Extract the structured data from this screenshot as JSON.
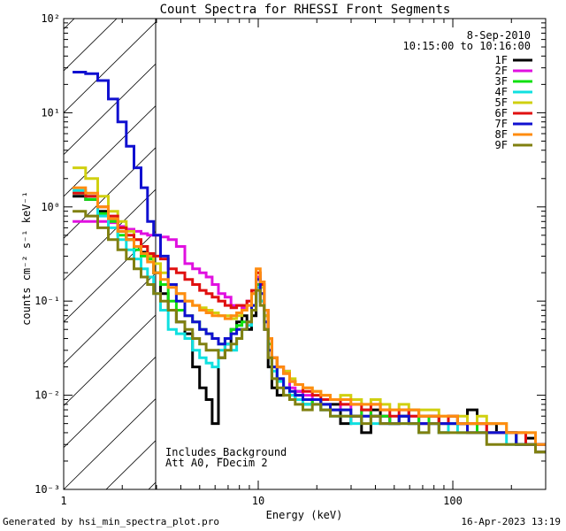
{
  "chart_data": {
    "type": "line",
    "title": "Count Spectra for RHESSI Front Segments",
    "xlabel": "Energy (keV)",
    "ylabel": "counts cm⁻² s⁻¹ keV⁻¹",
    "xscale": "log",
    "yscale": "log",
    "xlim": [
      1,
      300
    ],
    "ylim": [
      0.001,
      100
    ],
    "x_tick_labels": [
      {
        "value": 1,
        "label": "1"
      },
      {
        "value": 10,
        "label": "10"
      },
      {
        "value": 100,
        "label": "100"
      }
    ],
    "y_tick_labels": [
      {
        "value": 0.001,
        "label": "10⁻³"
      },
      {
        "value": 0.01,
        "label": "10⁻²"
      },
      {
        "value": 0.1,
        "label": "10⁻¹"
      },
      {
        "value": 1,
        "label": "10⁰"
      },
      {
        "value": 10,
        "label": "10¹"
      },
      {
        "value": 100,
        "label": "10²"
      }
    ],
    "hatched_region": {
      "x": [
        1,
        3
      ]
    },
    "date_label": "8-Sep-2010",
    "time_range_label": "10:15:00 to 10:16:00",
    "annotations": [
      "Includes_Background",
      "Att A0, FDecim 2"
    ],
    "legend_position": "top-right",
    "x": [
      1.2,
      1.4,
      1.6,
      1.8,
      2.0,
      2.2,
      2.4,
      2.6,
      2.8,
      3.0,
      3.3,
      3.6,
      4.0,
      4.4,
      4.8,
      5.2,
      5.6,
      6.0,
      6.5,
      7.0,
      7.5,
      8.0,
      8.5,
      9.0,
      9.5,
      10.0,
      10.5,
      11.0,
      11.5,
      12.0,
      13.0,
      14.0,
      15.0,
      16.0,
      18.0,
      20.0,
      22.0,
      25.0,
      28.0,
      32.0,
      36.0,
      40.0,
      45.0,
      50.0,
      56.0,
      63.0,
      71.0,
      80.0,
      90.0,
      100.0,
      112.0,
      126.0,
      141.0,
      158.0,
      178.0,
      200.0,
      224.0,
      251.0,
      282.0
    ],
    "series": [
      {
        "name": "1F",
        "color": "#000000",
        "values": [
          1.3,
          1.2,
          0.9,
          0.7,
          0.55,
          0.45,
          0.38,
          0.33,
          0.3,
          0.2,
          0.12,
          0.08,
          0.06,
          0.045,
          0.02,
          0.012,
          0.009,
          0.005,
          0.025,
          0.035,
          0.05,
          0.06,
          0.07,
          0.05,
          0.07,
          0.15,
          0.1,
          0.05,
          0.02,
          0.012,
          0.01,
          0.012,
          0.009,
          0.011,
          0.008,
          0.009,
          0.007,
          0.008,
          0.005,
          0.006,
          0.004,
          0.007,
          0.006,
          0.005,
          0.006,
          0.007,
          0.005,
          0.006,
          0.004,
          0.006,
          0.005,
          0.007,
          0.005,
          0.005,
          0.004,
          0.004,
          0.003,
          0.0035,
          0.0025
        ]
      },
      {
        "name": "2F",
        "color": "#e010e0",
        "values": [
          0.7,
          0.7,
          0.7,
          0.68,
          0.62,
          0.58,
          0.55,
          0.52,
          0.5,
          0.5,
          0.48,
          0.45,
          0.38,
          0.25,
          0.22,
          0.2,
          0.18,
          0.15,
          0.12,
          0.11,
          0.09,
          0.09,
          0.085,
          0.1,
          0.12,
          0.18,
          0.15,
          0.08,
          0.04,
          0.025,
          0.02,
          0.018,
          0.012,
          0.011,
          0.01,
          0.009,
          0.008,
          0.007,
          0.008,
          0.006,
          0.007,
          0.006,
          0.006,
          0.005,
          0.006,
          0.006,
          0.005,
          0.005,
          0.005,
          0.005,
          0.005,
          0.004,
          0.005,
          0.004,
          0.004,
          0.004,
          0.003,
          0.003,
          0.003
        ]
      },
      {
        "name": "3F",
        "color": "#10e010",
        "values": [
          1.4,
          1.2,
          0.85,
          0.7,
          0.5,
          0.45,
          0.35,
          0.3,
          0.28,
          0.2,
          0.15,
          0.1,
          0.08,
          0.07,
          0.06,
          0.05,
          0.045,
          0.04,
          0.035,
          0.04,
          0.05,
          0.055,
          0.06,
          0.06,
          0.09,
          0.15,
          0.12,
          0.07,
          0.035,
          0.02,
          0.015,
          0.012,
          0.01,
          0.01,
          0.008,
          0.009,
          0.008,
          0.007,
          0.007,
          0.006,
          0.007,
          0.006,
          0.006,
          0.005,
          0.006,
          0.005,
          0.006,
          0.005,
          0.005,
          0.005,
          0.005,
          0.005,
          0.004,
          0.004,
          0.004,
          0.004,
          0.003,
          0.003,
          0.003
        ]
      },
      {
        "name": "4F",
        "color": "#10e0e0",
        "values": [
          1.5,
          1.3,
          0.8,
          0.6,
          0.45,
          0.35,
          0.28,
          0.22,
          0.18,
          0.12,
          0.08,
          0.05,
          0.045,
          0.04,
          0.03,
          0.025,
          0.022,
          0.02,
          0.03,
          0.035,
          0.03,
          0.04,
          0.05,
          0.055,
          0.08,
          0.14,
          0.1,
          0.06,
          0.03,
          0.018,
          0.014,
          0.012,
          0.01,
          0.009,
          0.008,
          0.008,
          0.007,
          0.006,
          0.006,
          0.005,
          0.006,
          0.005,
          0.005,
          0.005,
          0.005,
          0.005,
          0.004,
          0.005,
          0.004,
          0.005,
          0.004,
          0.004,
          0.004,
          0.004,
          0.004,
          0.003,
          0.003,
          0.003,
          0.003
        ]
      },
      {
        "name": "5F",
        "color": "#d0d010",
        "values": [
          2.6,
          2.0,
          1.3,
          0.9,
          0.7,
          0.55,
          0.45,
          0.38,
          0.3,
          0.25,
          0.2,
          0.15,
          0.12,
          0.1,
          0.09,
          0.085,
          0.08,
          0.075,
          0.07,
          0.07,
          0.065,
          0.07,
          0.08,
          0.09,
          0.12,
          0.2,
          0.14,
          0.07,
          0.04,
          0.025,
          0.02,
          0.018,
          0.015,
          0.013,
          0.012,
          0.011,
          0.01,
          0.009,
          0.01,
          0.009,
          0.008,
          0.009,
          0.008,
          0.007,
          0.008,
          0.007,
          0.007,
          0.007,
          0.006,
          0.006,
          0.006,
          0.005,
          0.006,
          0.005,
          0.005,
          0.004,
          0.004,
          0.004,
          0.003
        ]
      },
      {
        "name": "6F",
        "color": "#e01010",
        "values": [
          1.4,
          1.3,
          1.0,
          0.8,
          0.6,
          0.5,
          0.45,
          0.38,
          0.32,
          0.3,
          0.28,
          0.22,
          0.2,
          0.17,
          0.15,
          0.13,
          0.12,
          0.11,
          0.1,
          0.09,
          0.085,
          0.09,
          0.09,
          0.1,
          0.13,
          0.2,
          0.15,
          0.08,
          0.04,
          0.025,
          0.02,
          0.017,
          0.014,
          0.013,
          0.011,
          0.01,
          0.009,
          0.009,
          0.008,
          0.008,
          0.007,
          0.008,
          0.007,
          0.006,
          0.007,
          0.006,
          0.006,
          0.006,
          0.005,
          0.006,
          0.005,
          0.005,
          0.005,
          0.004,
          0.004,
          0.004,
          0.004,
          0.003,
          0.003
        ]
      },
      {
        "name": "7F",
        "color": "#1010d0",
        "values": [
          27,
          26,
          22,
          14,
          8,
          4.4,
          2.6,
          1.6,
          0.7,
          0.5,
          0.3,
          0.15,
          0.1,
          0.07,
          0.06,
          0.05,
          0.045,
          0.04,
          0.035,
          0.04,
          0.045,
          0.05,
          0.05,
          0.06,
          0.09,
          0.17,
          0.12,
          0.06,
          0.03,
          0.02,
          0.015,
          0.012,
          0.011,
          0.01,
          0.009,
          0.009,
          0.008,
          0.007,
          0.007,
          0.006,
          0.006,
          0.006,
          0.005,
          0.005,
          0.006,
          0.005,
          0.005,
          0.005,
          0.005,
          0.005,
          0.005,
          0.004,
          0.004,
          0.004,
          0.004,
          0.004,
          0.003,
          0.003,
          0.003
        ]
      },
      {
        "name": "8F",
        "color": "#ff8c10",
        "values": [
          1.6,
          1.4,
          1.0,
          0.75,
          0.55,
          0.45,
          0.38,
          0.32,
          0.26,
          0.2,
          0.17,
          0.14,
          0.12,
          0.1,
          0.09,
          0.08,
          0.075,
          0.07,
          0.07,
          0.065,
          0.07,
          0.075,
          0.08,
          0.09,
          0.12,
          0.22,
          0.16,
          0.08,
          0.04,
          0.025,
          0.02,
          0.017,
          0.014,
          0.013,
          0.012,
          0.011,
          0.01,
          0.009,
          0.009,
          0.008,
          0.008,
          0.008,
          0.007,
          0.007,
          0.007,
          0.007,
          0.006,
          0.006,
          0.006,
          0.006,
          0.005,
          0.005,
          0.005,
          0.005,
          0.005,
          0.004,
          0.004,
          0.004,
          0.003
        ]
      },
      {
        "name": "9F",
        "color": "#808010",
        "values": [
          0.9,
          0.8,
          0.6,
          0.45,
          0.35,
          0.28,
          0.22,
          0.18,
          0.15,
          0.12,
          0.1,
          0.08,
          0.06,
          0.05,
          0.04,
          0.035,
          0.03,
          0.03,
          0.025,
          0.03,
          0.035,
          0.04,
          0.05,
          0.06,
          0.08,
          0.13,
          0.09,
          0.05,
          0.025,
          0.015,
          0.012,
          0.01,
          0.009,
          0.008,
          0.007,
          0.008,
          0.007,
          0.006,
          0.006,
          0.006,
          0.005,
          0.006,
          0.005,
          0.005,
          0.005,
          0.005,
          0.004,
          0.005,
          0.004,
          0.004,
          0.004,
          0.004,
          0.004,
          0.003,
          0.003,
          0.003,
          0.003,
          0.003,
          0.0025
        ]
      }
    ]
  },
  "footer": {
    "generated_by": "Generated by hsi_min_spectra_plot.pro",
    "timestamp": "16-Apr-2023 13:19"
  }
}
